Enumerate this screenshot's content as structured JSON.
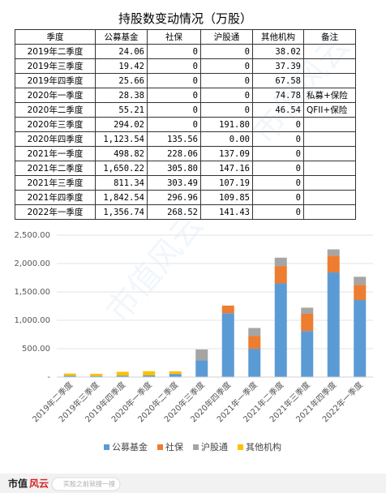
{
  "table": {
    "title": "持股数变动情况（万股）",
    "header": [
      "季度",
      "公募基金",
      "社保",
      "沪股通",
      "其他机构",
      "备注"
    ],
    "rows": [
      [
        "2019年二季度",
        "24.06",
        "0",
        "0",
        "38.02",
        null
      ],
      [
        "2019年三季度",
        "19.42",
        "0",
        "0",
        "37.39",
        null
      ],
      [
        "2019年四季度",
        "25.66",
        "0",
        "0",
        "67.58",
        null
      ],
      [
        "2020年一季度",
        "28.38",
        "0",
        "0",
        "74.78",
        "私募+保险"
      ],
      [
        "2020年二季度",
        "55.21",
        "0",
        "0",
        "46.54",
        "QFII+保险"
      ],
      [
        "2020年三季度",
        "294.02",
        "0",
        "191.80",
        "0",
        null
      ],
      [
        "2020年四季度",
        "1,123.54",
        "135.56",
        "0.00",
        "0",
        null
      ],
      [
        "2021年一季度",
        "498.82",
        "228.06",
        "137.09",
        "0",
        null
      ],
      [
        "2021年二季度",
        "1,650.22",
        "305.80",
        "147.16",
        "0",
        null
      ],
      [
        "2021年三季度",
        "811.34",
        "303.49",
        "107.19",
        "0",
        null
      ],
      [
        "2021年四季度",
        "1,842.54",
        "296.96",
        "109.85",
        "0",
        null
      ],
      [
        "2022年一季度",
        "1,356.74",
        "268.52",
        "141.43",
        "0",
        null
      ]
    ]
  },
  "chart_data": {
    "type": "stacked_bar",
    "categories": [
      "2019年二季度",
      "2019年三季度",
      "2019年四季度",
      "2020年一季度",
      "2020年二季度",
      "2020年三季度",
      "2020年四季度",
      "2021年一季度",
      "2021年二季度",
      "2021年三季度",
      "2021年四季度",
      "2022年一季度"
    ],
    "series": [
      {
        "name": "公募基金",
        "color": "#5b9bd5",
        "values": [
          24.06,
          19.42,
          25.66,
          28.38,
          55.21,
          294.02,
          1123.54,
          498.82,
          1650.22,
          811.34,
          1842.54,
          1356.74
        ]
      },
      {
        "name": "社保",
        "color": "#ed7d31",
        "values": [
          0,
          0,
          0,
          0,
          0,
          0,
          135.56,
          228.06,
          305.8,
          303.49,
          296.96,
          268.52
        ]
      },
      {
        "name": "沪股通",
        "color": "#a5a5a5",
        "values": [
          0,
          0,
          0,
          0,
          0,
          191.8,
          0,
          137.09,
          147.16,
          107.19,
          109.85,
          141.43
        ]
      },
      {
        "name": "其他机构",
        "color": "#ffc000",
        "values": [
          38.02,
          37.39,
          67.58,
          74.78,
          46.54,
          0,
          0,
          0,
          0,
          0,
          0,
          0
        ]
      }
    ],
    "ylim": [
      0,
      2500
    ],
    "yticks": [
      {
        "value": 0,
        "label": "-"
      },
      {
        "value": 500,
        "label": "500.00"
      },
      {
        "value": 1000,
        "label": "1,000.00"
      },
      {
        "value": 1500,
        "label": "1,500.00"
      },
      {
        "value": 2000,
        "label": "2,000.00"
      },
      {
        "value": 2500,
        "label": "2,500.00"
      }
    ],
    "grid": true,
    "legend": "bottom"
  },
  "footer": {
    "logo": "市值",
    "logo_mark": "风云",
    "search": "实股之前就搜一搜"
  },
  "watermark": "市值风云"
}
